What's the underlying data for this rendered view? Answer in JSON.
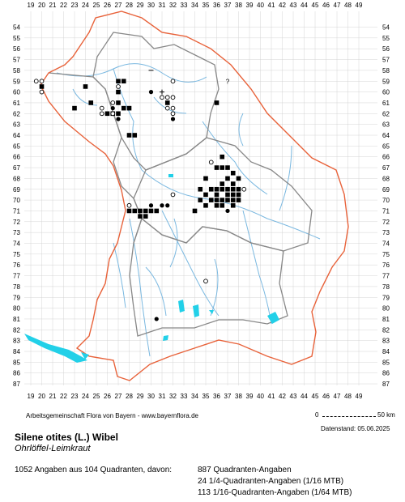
{
  "grid": {
    "x_labels": [
      "19",
      "20",
      "21",
      "22",
      "23",
      "24",
      "25",
      "26",
      "27",
      "28",
      "29",
      "30",
      "31",
      "32",
      "33",
      "34",
      "35",
      "36",
      "37",
      "38",
      "39",
      "40",
      "41",
      "42",
      "43",
      "44",
      "45",
      "46",
      "47",
      "48",
      "49"
    ],
    "y_labels": [
      "54",
      "55",
      "56",
      "57",
      "58",
      "59",
      "60",
      "61",
      "62",
      "63",
      "64",
      "65",
      "66",
      "67",
      "68",
      "69",
      "70",
      "71",
      "72",
      "73",
      "74",
      "75",
      "76",
      "77",
      "78",
      "79",
      "80",
      "81",
      "82",
      "83",
      "84",
      "85",
      "86",
      "87"
    ]
  },
  "colors": {
    "border": "#e8623a",
    "district": "#888888",
    "river": "#7ab8e0",
    "lake": "#22d0e8",
    "grid": "#cccccc",
    "marker": "#000000"
  },
  "records": {
    "square": [
      [
        20,
        59.5
      ],
      [
        24,
        59.5
      ],
      [
        24.5,
        61
      ],
      [
        26,
        62
      ],
      [
        26.5,
        62
      ],
      [
        27,
        59
      ],
      [
        27.5,
        59
      ],
      [
        27,
        60
      ],
      [
        27,
        61
      ],
      [
        27,
        62
      ],
      [
        27.5,
        61.5
      ],
      [
        28,
        61.5
      ],
      [
        28,
        64
      ],
      [
        28.5,
        64
      ],
      [
        31.5,
        61
      ],
      [
        36,
        61
      ],
      [
        23,
        61.5
      ],
      [
        36.5,
        66
      ],
      [
        36,
        67
      ],
      [
        36.5,
        67
      ],
      [
        37,
        67
      ],
      [
        37.5,
        67.5
      ],
      [
        37,
        68
      ],
      [
        38,
        68
      ],
      [
        35,
        68
      ],
      [
        36.5,
        68.5
      ],
      [
        37.5,
        68.5
      ],
      [
        35.5,
        69
      ],
      [
        36,
        69
      ],
      [
        36.5,
        69
      ],
      [
        37,
        69
      ],
      [
        37.5,
        69
      ],
      [
        38,
        69
      ],
      [
        34.5,
        69
      ],
      [
        35,
        69.5
      ],
      [
        36,
        69.5
      ],
      [
        37,
        69.5
      ],
      [
        37.5,
        69.5
      ],
      [
        38,
        69.5
      ],
      [
        35.5,
        70
      ],
      [
        36,
        70
      ],
      [
        36.5,
        70
      ],
      [
        37,
        70
      ],
      [
        37.5,
        70
      ],
      [
        38,
        70
      ],
      [
        34.5,
        70
      ],
      [
        36,
        70.5
      ],
      [
        36.5,
        70.5
      ],
      [
        37.5,
        70.5
      ],
      [
        35,
        70.5
      ],
      [
        29,
        71
      ],
      [
        29.5,
        71
      ],
      [
        30,
        71
      ],
      [
        30.5,
        71
      ],
      [
        28,
        71
      ],
      [
        28.5,
        71
      ],
      [
        34,
        71
      ],
      [
        29,
        71.5
      ],
      [
        29.5,
        71.5
      ]
    ],
    "dot": [
      [
        30,
        60
      ],
      [
        28,
        61.5
      ],
      [
        26.5,
        61.5
      ],
      [
        27,
        62.5
      ],
      [
        32,
        62.5
      ],
      [
        31,
        70.5
      ],
      [
        31.5,
        70.5
      ],
      [
        30,
        70.5
      ],
      [
        37,
        71
      ],
      [
        30.5,
        81
      ]
    ],
    "circle": [
      [
        19.5,
        59
      ],
      [
        20,
        59
      ],
      [
        20,
        60
      ],
      [
        25.5,
        61.5
      ],
      [
        27,
        59.5
      ],
      [
        31,
        60.5
      ],
      [
        31.5,
        60.5
      ],
      [
        26.5,
        62
      ],
      [
        25.5,
        62
      ],
      [
        32,
        59
      ],
      [
        32,
        60.5
      ],
      [
        32,
        61.5
      ],
      [
        32,
        62
      ],
      [
        35.5,
        66.5
      ],
      [
        38.5,
        69
      ],
      [
        32,
        69.5
      ],
      [
        28,
        70.5
      ],
      [
        35,
        77.5
      ],
      [
        26.5,
        61
      ],
      [
        31.5,
        61.5
      ]
    ],
    "dash": [
      [
        30,
        58
      ]
    ],
    "plus": [
      [
        31,
        60
      ]
    ],
    "question": [
      [
        37,
        59
      ]
    ]
  },
  "footer": {
    "credit": "Arbeitsgemeinschaft Flora von Bayern - www.bayernflora.de",
    "scale_zero": "0",
    "scale_km": "50 km",
    "date": "Datenstand: 05.06.2025",
    "title": "Silene otites (L.) Wibel",
    "subtitle": "Ohrlöffel-Leimkraut",
    "summary": "1052 Angaben aus 104 Quadranten, davon:",
    "stat1": "887 Quadranten-Angaben",
    "stat2": "24 1/4-Quadranten-Angaben (1/16 MTB)",
    "stat3": "113 1/16-Quadranten-Angaben (1/64 MTB)"
  }
}
